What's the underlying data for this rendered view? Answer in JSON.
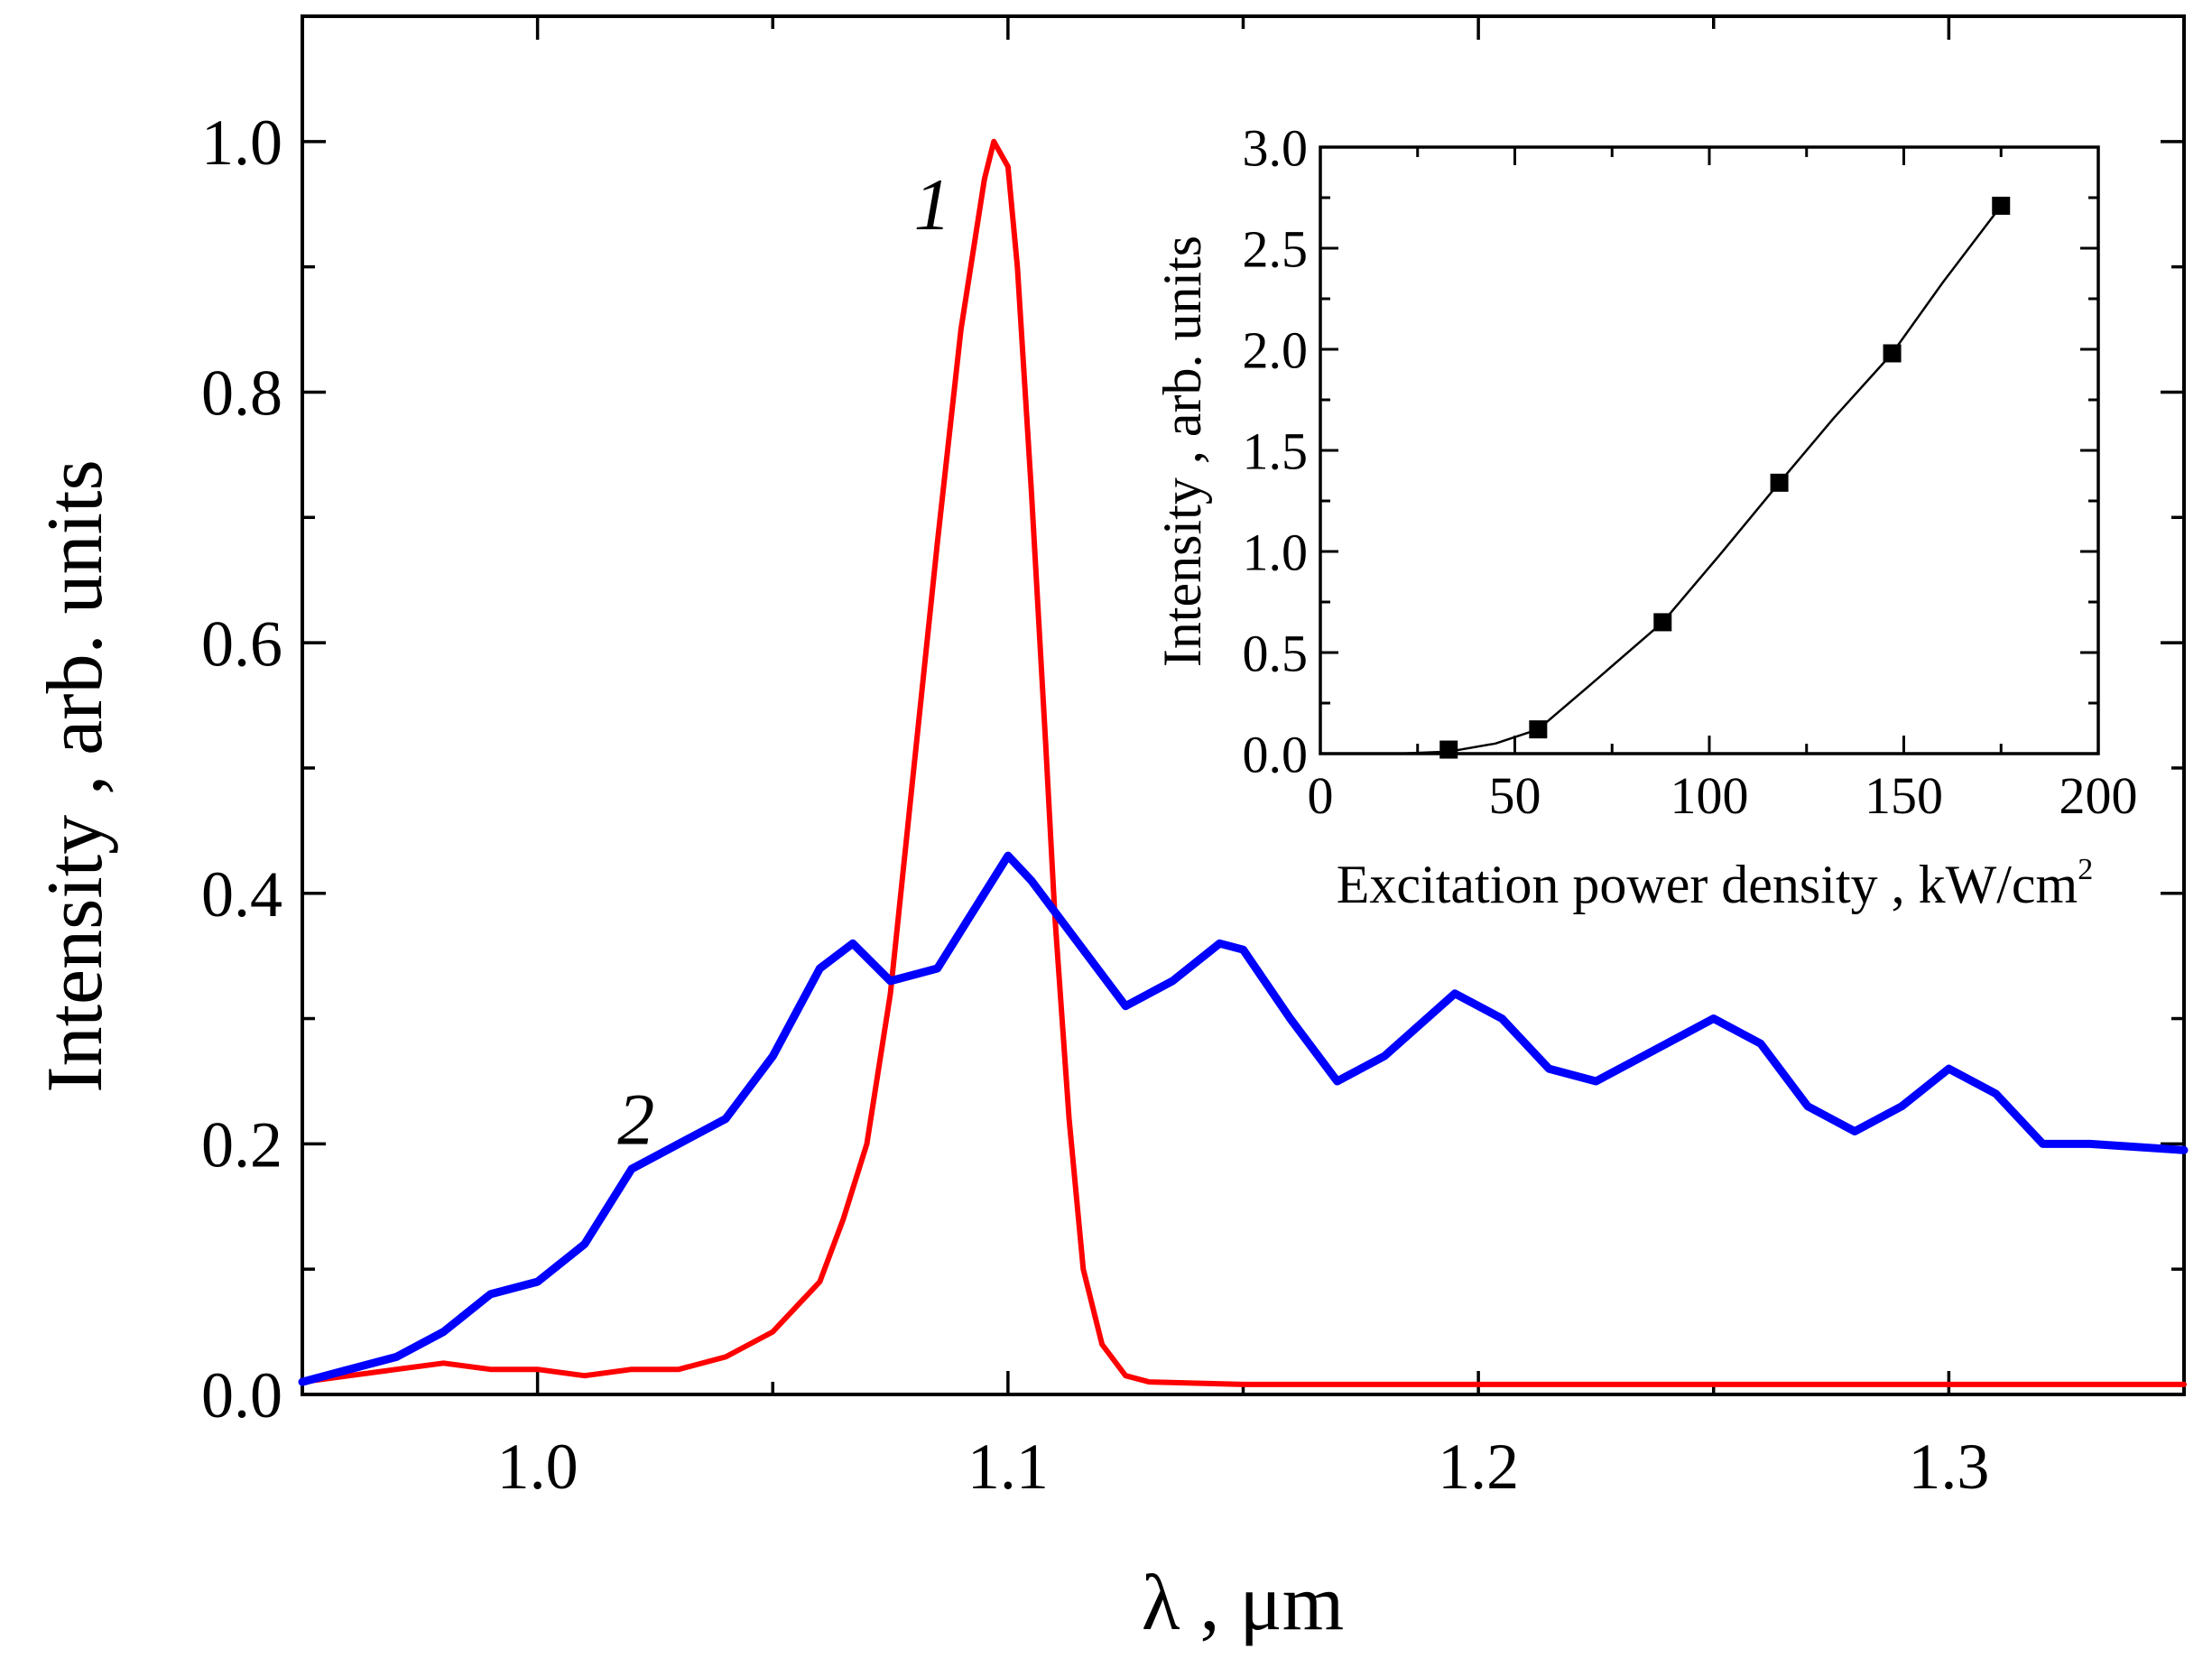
{
  "chart_data": [
    {
      "type": "line",
      "name": "main",
      "xlabel": "λ , μm",
      "ylabel": "Intensity , arb. units",
      "xlim": [
        0.95,
        1.35
      ],
      "ylim": [
        0.0,
        1.1
      ],
      "xticks": [
        1.0,
        1.1,
        1.2,
        1.3
      ],
      "xtick_labels": [
        "1.0",
        "1.1",
        "1.2",
        "1.3"
      ],
      "yticks": [
        0.0,
        0.2,
        0.4,
        0.6,
        0.8,
        1.0
      ],
      "ytick_labels": [
        "0.0",
        "0.2",
        "0.4",
        "0.6",
        "0.8",
        "1.0"
      ],
      "grid": false,
      "series": [
        {
          "name": "1",
          "label": "1",
          "color": "#ff0000",
          "x": [
            0.95,
            0.96,
            0.97,
            0.98,
            0.99,
            1.0,
            1.01,
            1.02,
            1.03,
            1.04,
            1.05,
            1.055,
            1.06,
            1.065,
            1.07,
            1.075,
            1.08,
            1.085,
            1.09,
            1.095,
            1.097,
            1.1,
            1.102,
            1.105,
            1.108,
            1.11,
            1.113,
            1.116,
            1.12,
            1.125,
            1.13,
            1.15,
            1.2,
            1.25,
            1.3,
            1.35
          ],
          "y": [
            0.01,
            0.015,
            0.02,
            0.025,
            0.02,
            0.02,
            0.015,
            0.02,
            0.02,
            0.03,
            0.05,
            0.07,
            0.09,
            0.14,
            0.2,
            0.32,
            0.5,
            0.68,
            0.85,
            0.97,
            1.0,
            0.98,
            0.9,
            0.72,
            0.52,
            0.38,
            0.22,
            0.1,
            0.04,
            0.015,
            0.01,
            0.008,
            0.008,
            0.008,
            0.008,
            0.008
          ]
        },
        {
          "name": "2",
          "label": "2",
          "color": "#0000ff",
          "x": [
            0.95,
            0.96,
            0.97,
            0.98,
            0.99,
            1.0,
            1.01,
            1.02,
            1.03,
            1.04,
            1.05,
            1.06,
            1.067,
            1.075,
            1.085,
            1.095,
            1.1,
            1.105,
            1.115,
            1.125,
            1.135,
            1.145,
            1.15,
            1.16,
            1.17,
            1.18,
            1.195,
            1.205,
            1.215,
            1.225,
            1.235,
            1.25,
            1.26,
            1.27,
            1.28,
            1.29,
            1.3,
            1.31,
            1.32,
            1.33,
            1.35
          ],
          "y": [
            0.01,
            0.02,
            0.03,
            0.05,
            0.08,
            0.09,
            0.12,
            0.18,
            0.2,
            0.22,
            0.27,
            0.34,
            0.36,
            0.33,
            0.34,
            0.4,
            0.43,
            0.41,
            0.36,
            0.31,
            0.33,
            0.36,
            0.355,
            0.3,
            0.25,
            0.27,
            0.32,
            0.3,
            0.26,
            0.25,
            0.27,
            0.3,
            0.28,
            0.23,
            0.21,
            0.23,
            0.26,
            0.24,
            0.2,
            0.2,
            0.195
          ]
        }
      ],
      "annotations": [
        {
          "text": "1",
          "x": 1.08,
          "y": 0.93,
          "color": "#000000"
        },
        {
          "text": "2",
          "x": 1.017,
          "y": 0.2,
          "color": "#000000"
        }
      ]
    },
    {
      "type": "line",
      "name": "inset",
      "xlabel": "Excitation power density , kW/cm",
      "xlabel_superscript": "2",
      "ylabel": "Intensity , arb. units",
      "xlim": [
        0,
        200
      ],
      "ylim": [
        0.0,
        3.0
      ],
      "xticks": [
        0,
        50,
        100,
        150,
        200
      ],
      "xtick_labels": [
        "0",
        "50",
        "100",
        "150",
        "200"
      ],
      "yticks": [
        0.0,
        0.5,
        1.0,
        1.5,
        2.0,
        2.5,
        3.0
      ],
      "ytick_labels": [
        "0.0",
        "0.5",
        "1.0",
        "1.5",
        "2.0",
        "2.5",
        "3.0"
      ],
      "grid": false,
      "series": [
        {
          "name": "measured",
          "color": "#000000",
          "marker": "square",
          "x": [
            33,
            56,
            88,
            118,
            147,
            175
          ],
          "y": [
            0.02,
            0.12,
            0.65,
            1.34,
            1.98,
            2.71
          ]
        },
        {
          "name": "fit",
          "color": "#000000",
          "marker": "none",
          "x": [
            0,
            20,
            33,
            45,
            56,
            70,
            88,
            103,
            118,
            132,
            147,
            160,
            175
          ],
          "y": [
            0.0,
            0.0,
            0.01,
            0.05,
            0.12,
            0.35,
            0.65,
            0.99,
            1.34,
            1.66,
            1.98,
            2.33,
            2.71
          ]
        }
      ]
    }
  ]
}
